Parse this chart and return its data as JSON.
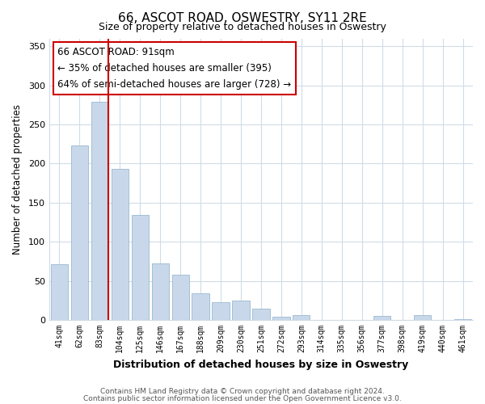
{
  "title": "66, ASCOT ROAD, OSWESTRY, SY11 2RE",
  "subtitle": "Size of property relative to detached houses in Oswestry",
  "xlabel": "Distribution of detached houses by size in Oswestry",
  "ylabel": "Number of detached properties",
  "categories": [
    "41sqm",
    "62sqm",
    "83sqm",
    "104sqm",
    "125sqm",
    "146sqm",
    "167sqm",
    "188sqm",
    "209sqm",
    "230sqm",
    "251sqm",
    "272sqm",
    "293sqm",
    "314sqm",
    "335sqm",
    "356sqm",
    "377sqm",
    "398sqm",
    "419sqm",
    "440sqm",
    "461sqm"
  ],
  "values": [
    71,
    223,
    279,
    193,
    134,
    72,
    58,
    34,
    23,
    25,
    15,
    4,
    6,
    0,
    0,
    0,
    5,
    0,
    6,
    0,
    1
  ],
  "bar_color": "#c8d8ea",
  "bar_edgecolor": "#9ab8d0",
  "highlight_line_index": 2,
  "highlight_line_color": "#cc0000",
  "annotation_title": "66 ASCOT ROAD: 91sqm",
  "annotation_line1": "← 35% of detached houses are smaller (395)",
  "annotation_line2": "64% of semi-detached houses are larger (728) →",
  "annotation_box_edgecolor": "#cc0000",
  "ylim": [
    0,
    360
  ],
  "yticks": [
    0,
    50,
    100,
    150,
    200,
    250,
    300,
    350
  ],
  "footer_line1": "Contains HM Land Registry data © Crown copyright and database right 2024.",
  "footer_line2": "Contains public sector information licensed under the Open Government Licence v3.0.",
  "background_color": "#ffffff",
  "grid_color": "#d0dce8"
}
